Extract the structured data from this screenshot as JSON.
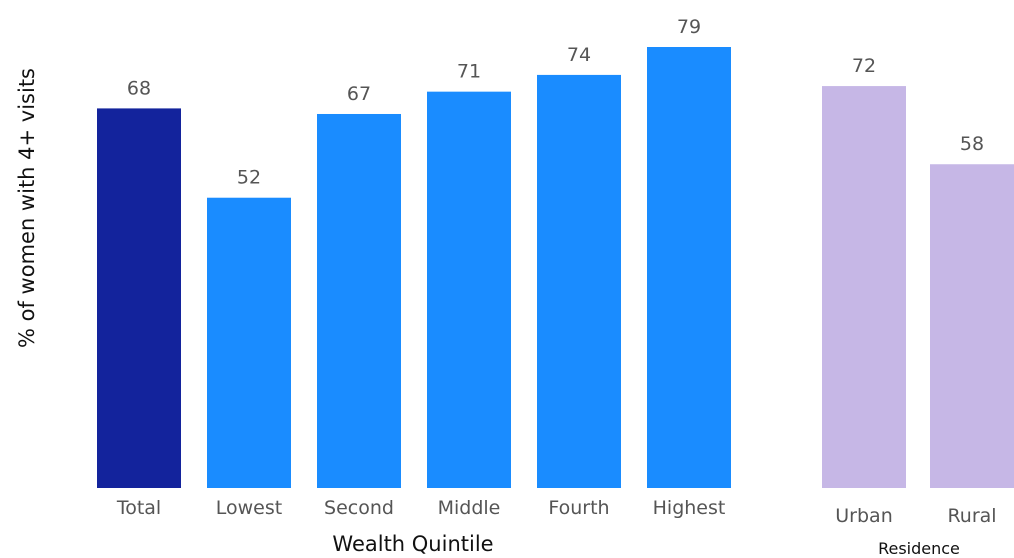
{
  "chart_data": {
    "type": "bar",
    "ylabel": "% of women with 4+ visits",
    "ylim": [
      0,
      79
    ],
    "grid": false,
    "groups": [
      {
        "title": "Wealth Quintile",
        "categories": [
          "Total",
          "Lowest",
          "Second",
          "Middle",
          "Fourth",
          "Highest"
        ],
        "values": [
          68,
          52,
          67,
          71,
          74,
          79
        ],
        "colors": [
          "#13239c",
          "#1a8cff",
          "#1a8cff",
          "#1a8cff",
          "#1a8cff",
          "#1a8cff"
        ]
      },
      {
        "title": "Residence",
        "categories": [
          "Urban",
          "Rural"
        ],
        "values": [
          72,
          58
        ],
        "colors": [
          "#c6b7e6",
          "#c6b7e6"
        ]
      }
    ]
  }
}
